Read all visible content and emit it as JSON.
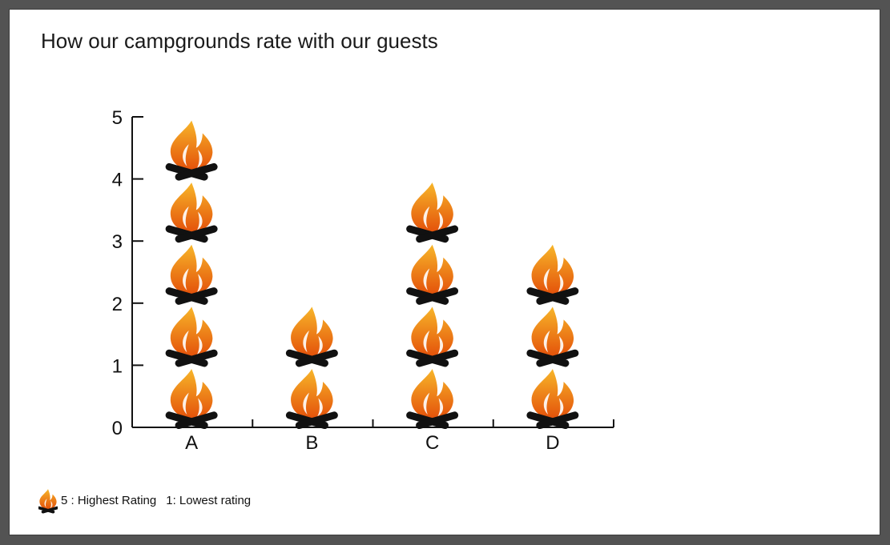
{
  "title": "How our campgrounds rate with our guests",
  "legend": {
    "icon": "campfire-icon",
    "high_text": "5 : Highest Rating",
    "low_text": "1: Lowest rating"
  },
  "colors": {
    "flame_outer": "#f0a020",
    "flame_inner": "#e85d0c",
    "logs": "#111111",
    "axis": "#111111"
  },
  "chart_data": {
    "type": "bar",
    "style": "pictograph",
    "icon": "campfire-icon",
    "categories": [
      "A",
      "B",
      "C",
      "D"
    ],
    "values": [
      5,
      2,
      4,
      3
    ],
    "title": "How our campgrounds rate with our guests",
    "xlabel": "",
    "ylabel": "",
    "ylim": [
      0,
      5
    ],
    "yticks": [
      0,
      1,
      2,
      3,
      4,
      5
    ],
    "grid": false
  }
}
